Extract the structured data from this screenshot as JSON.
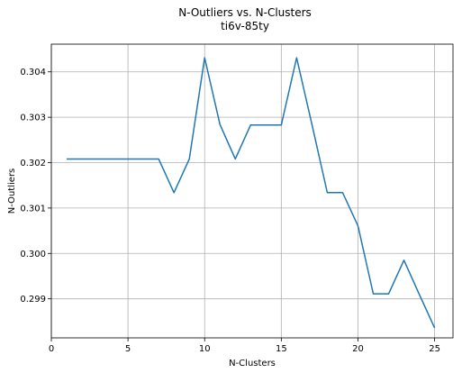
{
  "chart_data": {
    "type": "line",
    "title": "N-Outliers vs. N-Clusters",
    "subtitle": "ti6v-85ty",
    "xlabel": "N-Clusters",
    "ylabel": "N-Outliers",
    "xlim": [
      0,
      26.2
    ],
    "ylim": [
      0.29814,
      0.30461
    ],
    "grid": true,
    "xticks": [
      0,
      5,
      10,
      15,
      20,
      25
    ],
    "yticks": [
      0.299,
      0.3,
      0.301,
      0.302,
      0.303,
      0.304
    ],
    "xtick_labels": [
      "0",
      "5",
      "10",
      "15",
      "20",
      "25"
    ],
    "ytick_labels": [
      "0.299",
      "0.300",
      "0.301",
      "0.302",
      "0.303",
      "0.304"
    ],
    "series": [
      {
        "color": "#1f77b4",
        "x": [
          1,
          2,
          3,
          4,
          5,
          6,
          7,
          8,
          9,
          10,
          11,
          12,
          13,
          14,
          15,
          16,
          17,
          18,
          19,
          20,
          21,
          22,
          23,
          24,
          25
        ],
        "y": [
          0.30208,
          0.30208,
          0.30208,
          0.30208,
          0.30208,
          0.30208,
          0.30208,
          0.30134,
          0.30208,
          0.30431,
          0.30284,
          0.30208,
          0.30283,
          0.30283,
          0.30283,
          0.30431,
          0.30284,
          0.30134,
          0.30134,
          0.30061,
          0.29911,
          0.29911,
          0.29985,
          0.2991,
          0.29836
        ]
      }
    ]
  }
}
